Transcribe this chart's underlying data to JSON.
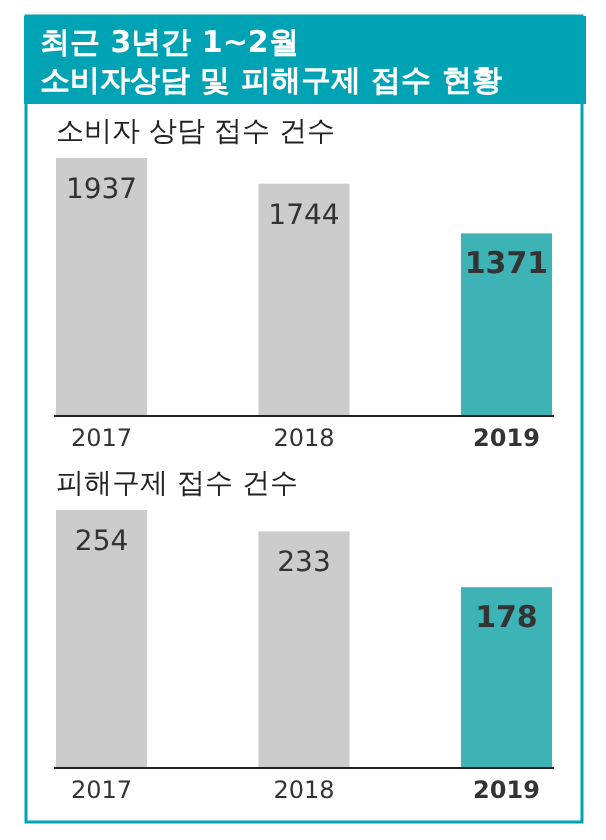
{
  "chart_data": [
    {
      "type": "bar",
      "title": "최근 3년간 1~2월\n소비자상담 및 피해구제 접수 현황",
      "subtitle": "소비자 상담 접수 건수",
      "categories": [
        "2017",
        "2018",
        "2019"
      ],
      "values": [
        1937,
        1744,
        1371
      ],
      "colors": [
        "#cccccc",
        "#cccccc",
        "#3db3b6"
      ],
      "data_labels": true
    },
    {
      "type": "bar",
      "subtitle": "피해구제 접수 건수",
      "categories": [
        "2017",
        "2018",
        "2019"
      ],
      "values": [
        254,
        233,
        178
      ],
      "colors": [
        "#cccccc",
        "#cccccc",
        "#3db3b6"
      ],
      "data_labels": true
    }
  ]
}
